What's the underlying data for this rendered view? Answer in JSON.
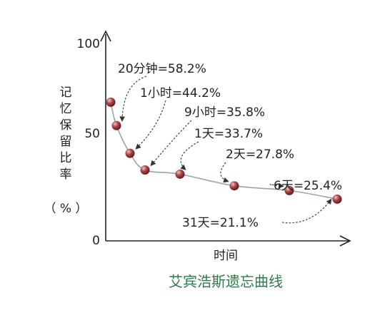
{
  "chart_data": {
    "type": "line",
    "title": "艾宾浩斯遗忘曲线",
    "xlabel": "时间",
    "ylabel": "记忆保留比率（%）",
    "ylabel_chars": [
      "记",
      "忆",
      "保",
      "留",
      "比",
      "率"
    ],
    "ylabel_unit": "（ % ）",
    "ylim": [
      0,
      100
    ],
    "yticks": [
      "0",
      "50",
      "100"
    ],
    "grid": false,
    "points": [
      {
        "x": "0",
        "y": 70.0,
        "label": ""
      },
      {
        "x": "20分钟",
        "y": 58.2,
        "label": "20分钟=58.2%"
      },
      {
        "x": "1小时",
        "y": 44.2,
        "label": "1小时=44.2%"
      },
      {
        "x": "9小时",
        "y": 35.8,
        "label": "9小时=35.8%"
      },
      {
        "x": "1天",
        "y": 33.7,
        "label": "1天=33.7%"
      },
      {
        "x": "2天",
        "y": 27.8,
        "label": "2天=27.8%"
      },
      {
        "x": "6天",
        "y": 25.4,
        "label": "6天=25.4%"
      },
      {
        "x": "31天",
        "y": 21.1,
        "label": "31天=21.1%"
      }
    ],
    "colors": {
      "marker": "#8a2a2e",
      "marker_highlight": "#f2c4c6",
      "curve": "#9ba6a0",
      "title": "#2f7a4a"
    }
  }
}
